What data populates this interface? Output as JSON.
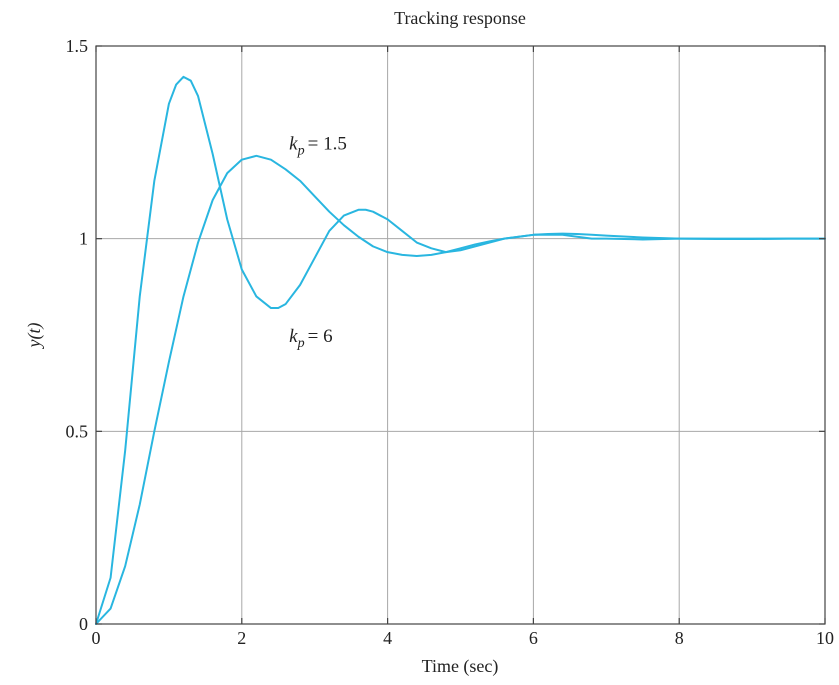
{
  "chart_data": {
    "type": "line",
    "title": "Tracking response",
    "xlabel": "Time (sec)",
    "ylabel": "y(t)",
    "xlim": [
      0,
      10
    ],
    "ylim": [
      0,
      1.5
    ],
    "xticks": [
      0,
      2,
      4,
      6,
      8,
      10
    ],
    "yticks": [
      0,
      0.5,
      1,
      1.5
    ],
    "xtick_labels": [
      "0",
      "2",
      "4",
      "6",
      "8",
      "10"
    ],
    "ytick_labels": [
      "0",
      "0.5",
      "1",
      "1.5"
    ],
    "grid": true,
    "line_color": "#29b6e0",
    "series": [
      {
        "label_var": "k",
        "label_sub": "p",
        "label_value": "= 6",
        "x": [
          0,
          0.2,
          0.4,
          0.6,
          0.8,
          1.0,
          1.1,
          1.2,
          1.3,
          1.4,
          1.6,
          1.8,
          2.0,
          2.2,
          2.4,
          2.5,
          2.6,
          2.8,
          3.0,
          3.2,
          3.4,
          3.6,
          3.7,
          3.8,
          4.0,
          4.2,
          4.4,
          4.6,
          4.8,
          5.0,
          5.2,
          5.4,
          5.6,
          5.8,
          6.0,
          6.2,
          6.4,
          6.6,
          6.8,
          7.0,
          7.5,
          8.0,
          8.5,
          9.0,
          9.5,
          10.0
        ],
        "y": [
          0,
          0.12,
          0.45,
          0.85,
          1.15,
          1.35,
          1.4,
          1.42,
          1.41,
          1.37,
          1.22,
          1.05,
          0.92,
          0.85,
          0.82,
          0.82,
          0.83,
          0.88,
          0.95,
          1.02,
          1.06,
          1.075,
          1.075,
          1.07,
          1.05,
          1.02,
          0.99,
          0.975,
          0.965,
          0.97,
          0.98,
          0.99,
          1.0,
          1.005,
          1.01,
          1.01,
          1.01,
          1.005,
          1.0,
          1.0,
          0.998,
          1.0,
          1.0,
          1.0,
          1.0,
          1.0
        ]
      },
      {
        "label_var": "k",
        "label_sub": "p",
        "label_value": "= 1.5",
        "x": [
          0,
          0.2,
          0.4,
          0.6,
          0.8,
          1.0,
          1.2,
          1.4,
          1.6,
          1.8,
          2.0,
          2.2,
          2.4,
          2.6,
          2.8,
          3.0,
          3.2,
          3.4,
          3.6,
          3.8,
          4.0,
          4.2,
          4.4,
          4.6,
          4.8,
          5.0,
          5.2,
          5.4,
          5.6,
          5.8,
          6.0,
          6.2,
          6.4,
          6.6,
          6.8,
          7.0,
          7.5,
          8.0,
          8.5,
          9.0,
          9.5,
          10.0
        ],
        "y": [
          0,
          0.04,
          0.15,
          0.31,
          0.5,
          0.68,
          0.85,
          0.99,
          1.1,
          1.17,
          1.205,
          1.215,
          1.205,
          1.18,
          1.15,
          1.11,
          1.07,
          1.035,
          1.005,
          0.98,
          0.965,
          0.958,
          0.955,
          0.958,
          0.965,
          0.975,
          0.985,
          0.993,
          1.0,
          1.005,
          1.01,
          1.012,
          1.013,
          1.012,
          1.01,
          1.008,
          1.003,
          1.0,
          0.999,
          0.999,
          1.0,
          1.0
        ]
      }
    ],
    "annotations": [
      {
        "var": "k",
        "sub": "p",
        "value": "= 1.5",
        "x": 2.65,
        "y": 1.25
      },
      {
        "var": "k",
        "sub": "p",
        "value": "= 6",
        "x": 2.65,
        "y": 0.75
      }
    ]
  }
}
